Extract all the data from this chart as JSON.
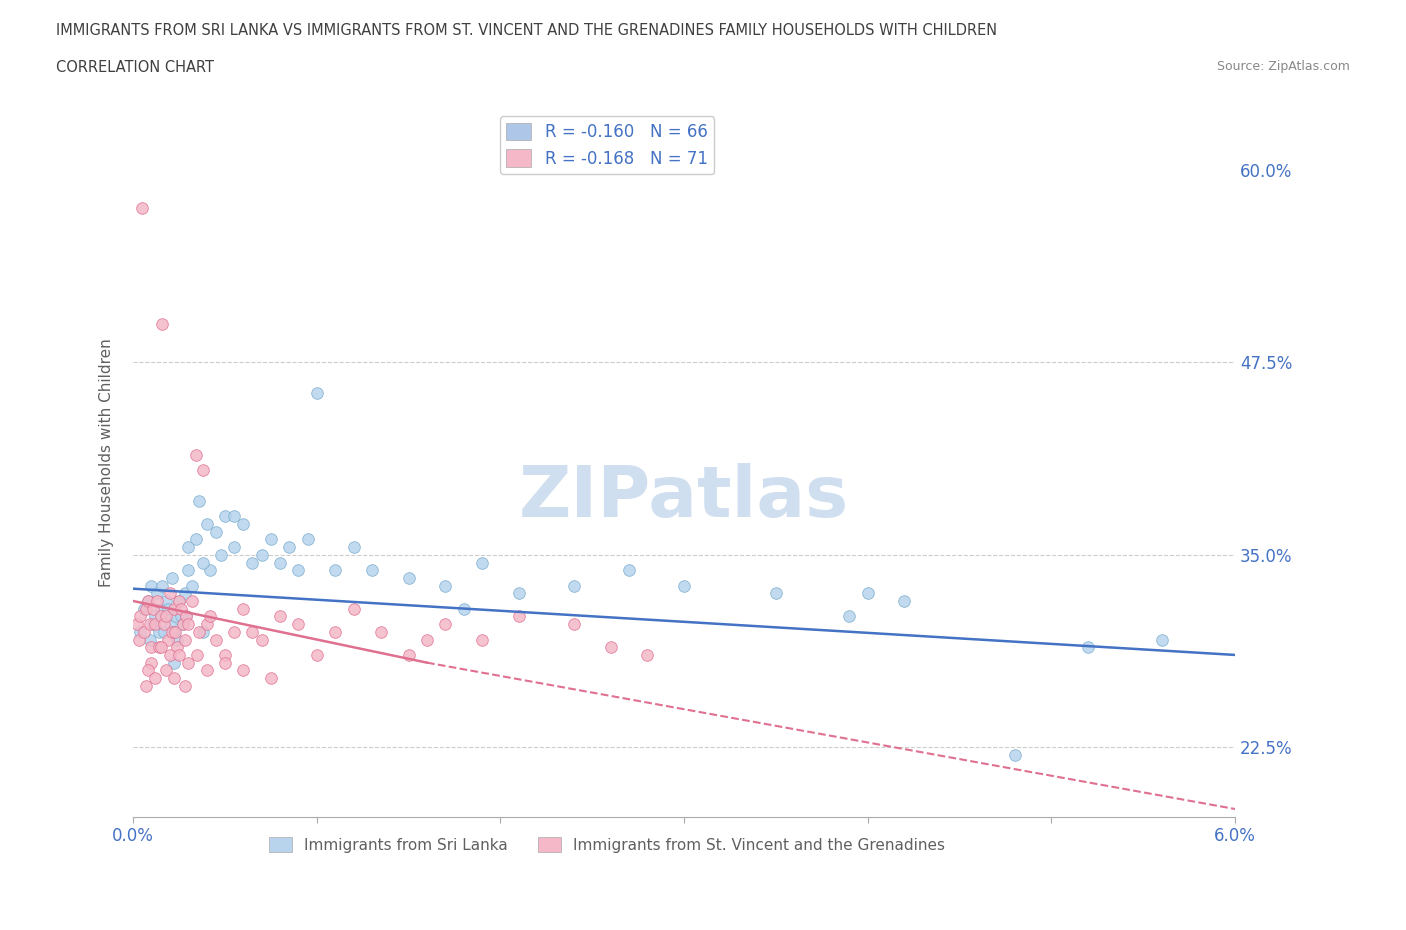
{
  "title_line1": "IMMIGRANTS FROM SRI LANKA VS IMMIGRANTS FROM ST. VINCENT AND THE GRENADINES FAMILY HOUSEHOLDS WITH CHILDREN",
  "title_line2": "CORRELATION CHART",
  "source_text": "Source: ZipAtlas.com",
  "ylabel": "Family Households with Children",
  "xlim": [
    0.0,
    6.0
  ],
  "ylim": [
    18.0,
    64.0
  ],
  "yticks": [
    22.5,
    35.0,
    47.5,
    60.0
  ],
  "watermark": "ZIPatlas",
  "legend_entries": [
    {
      "label": "R = -0.160   N = 66",
      "color": "#aec6e8"
    },
    {
      "label": "R = -0.168   N = 71",
      "color": "#f4b8c8"
    }
  ],
  "series_sri_lanka": {
    "name": "Immigrants from Sri Lanka",
    "scatter_face": "#b8d4ed",
    "scatter_edge": "#7aadce",
    "x": [
      0.04,
      0.06,
      0.08,
      0.09,
      0.1,
      0.11,
      0.12,
      0.13,
      0.14,
      0.15,
      0.16,
      0.17,
      0.18,
      0.19,
      0.2,
      0.21,
      0.22,
      0.23,
      0.24,
      0.25,
      0.26,
      0.27,
      0.28,
      0.29,
      0.3,
      0.32,
      0.34,
      0.36,
      0.38,
      0.4,
      0.42,
      0.45,
      0.48,
      0.5,
      0.55,
      0.6,
      0.65,
      0.7,
      0.75,
      0.8,
      0.85,
      0.9,
      0.95,
      1.0,
      1.1,
      1.2,
      1.3,
      1.5,
      1.7,
      1.9,
      2.1,
      2.4,
      2.7,
      3.0,
      3.5,
      4.0,
      4.2,
      4.8,
      5.2,
      5.6,
      3.9,
      0.55,
      1.8,
      0.38,
      0.22,
      0.3
    ],
    "y": [
      30.0,
      31.5,
      32.0,
      29.5,
      33.0,
      30.5,
      31.0,
      32.5,
      30.0,
      31.5,
      33.0,
      30.0,
      32.0,
      31.5,
      30.5,
      33.5,
      30.0,
      31.0,
      29.5,
      32.0,
      31.0,
      30.5,
      32.5,
      31.0,
      34.0,
      33.0,
      36.0,
      38.5,
      30.0,
      37.0,
      34.0,
      36.5,
      35.0,
      37.5,
      35.5,
      37.0,
      34.5,
      35.0,
      36.0,
      34.5,
      35.5,
      34.0,
      36.0,
      45.5,
      34.0,
      35.5,
      34.0,
      33.5,
      33.0,
      34.5,
      32.5,
      33.0,
      34.0,
      33.0,
      32.5,
      32.5,
      32.0,
      22.0,
      29.0,
      29.5,
      31.0,
      37.5,
      31.5,
      34.5,
      28.0,
      35.5
    ]
  },
  "series_stv": {
    "name": "Immigrants from St. Vincent and the Grenadines",
    "scatter_face": "#f4b8c8",
    "scatter_edge": "#e07090",
    "x": [
      0.02,
      0.03,
      0.04,
      0.05,
      0.06,
      0.07,
      0.08,
      0.09,
      0.1,
      0.11,
      0.12,
      0.13,
      0.14,
      0.15,
      0.16,
      0.17,
      0.18,
      0.19,
      0.2,
      0.21,
      0.22,
      0.23,
      0.24,
      0.25,
      0.26,
      0.27,
      0.28,
      0.29,
      0.3,
      0.32,
      0.34,
      0.36,
      0.38,
      0.4,
      0.42,
      0.45,
      0.5,
      0.55,
      0.6,
      0.65,
      0.7,
      0.8,
      0.9,
      1.0,
      1.1,
      1.2,
      1.35,
      1.5,
      1.7,
      1.9,
      2.1,
      2.4,
      2.6,
      2.8,
      0.1,
      0.15,
      0.08,
      0.2,
      0.12,
      0.25,
      0.07,
      0.3,
      0.18,
      0.22,
      0.35,
      0.4,
      0.28,
      0.5,
      1.6,
      0.75,
      0.6
    ],
    "y": [
      30.5,
      29.5,
      31.0,
      57.5,
      30.0,
      31.5,
      32.0,
      30.5,
      29.0,
      31.5,
      30.5,
      32.0,
      29.0,
      31.0,
      50.0,
      30.5,
      31.0,
      29.5,
      32.5,
      30.0,
      31.5,
      30.0,
      29.0,
      32.0,
      31.5,
      30.5,
      29.5,
      31.0,
      30.5,
      32.0,
      41.5,
      30.0,
      40.5,
      30.5,
      31.0,
      29.5,
      28.5,
      30.0,
      31.5,
      30.0,
      29.5,
      31.0,
      30.5,
      28.5,
      30.0,
      31.5,
      30.0,
      28.5,
      30.5,
      29.5,
      31.0,
      30.5,
      29.0,
      28.5,
      28.0,
      29.0,
      27.5,
      28.5,
      27.0,
      28.5,
      26.5,
      28.0,
      27.5,
      27.0,
      28.5,
      27.5,
      26.5,
      28.0,
      29.5,
      27.0,
      27.5
    ]
  },
  "trend_blue": {
    "x": [
      0.0,
      6.0
    ],
    "y": [
      32.8,
      28.5
    ],
    "color": "#4472c4",
    "style": "-",
    "lw": 1.8
  },
  "trend_pink_solid": {
    "x": [
      0.0,
      1.6
    ],
    "y": [
      32.0,
      28.0
    ],
    "color": "#e07090",
    "style": "-",
    "lw": 1.8
  },
  "trend_pink_dash": {
    "x": [
      1.6,
      6.0
    ],
    "y": [
      28.0,
      18.5
    ],
    "color": "#e07090",
    "style": "--",
    "lw": 1.5
  },
  "grid_yticks": [
    22.5,
    35.0,
    47.5
  ],
  "title_color": "#404040",
  "axis_color": "#606060",
  "tick_color": "#4472c4",
  "watermark_color": "#d0dff0",
  "background_color": "#ffffff"
}
